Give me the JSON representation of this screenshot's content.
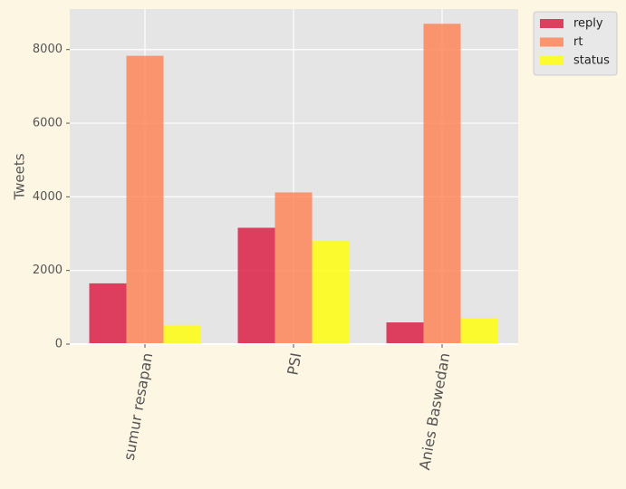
{
  "chart_data": {
    "type": "bar",
    "title": "",
    "xlabel": "",
    "ylabel": "Tweets",
    "categories": [
      "sumur resapan",
      "PSI",
      "Anies Baswedan"
    ],
    "series": [
      {
        "name": "reply",
        "values": [
          1650,
          3160,
          590
        ],
        "color": "#dc143c"
      },
      {
        "name": "rt",
        "values": [
          7830,
          4120,
          8700
        ],
        "color": "#ff7f50"
      },
      {
        "name": "status",
        "values": [
          520,
          2800,
          710
        ],
        "color": "#ffff00"
      }
    ],
    "ylim": [
      0,
      9100
    ],
    "yticks": [
      0,
      2000,
      4000,
      6000,
      8000
    ],
    "grid": true,
    "legend_position": "outside top-right",
    "plot_background": "#e5e5e5",
    "page_background": "#fdf6e3",
    "text_color": "#555555"
  }
}
